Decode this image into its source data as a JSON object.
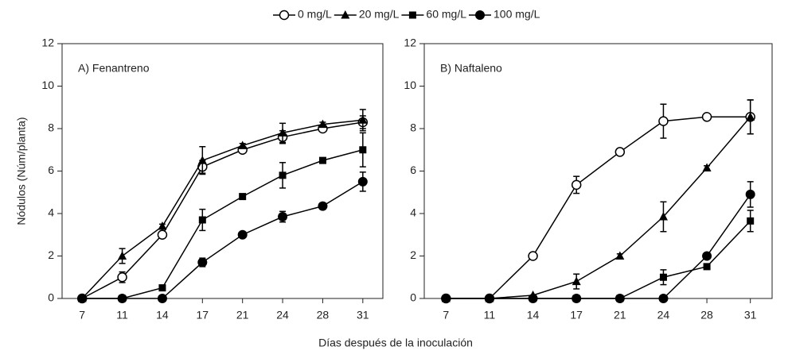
{
  "xlabel": "Días después de la inoculación",
  "chart_data": [
    {
      "type": "line",
      "title": "A) Fenantreno",
      "ylabel": "Nódulos (Núm/planta)",
      "categories": [
        "7",
        "11",
        "14",
        "17",
        "21",
        "24",
        "28",
        "31"
      ],
      "ylim": [
        0,
        12
      ],
      "yticks": [
        0,
        2,
        4,
        6,
        8,
        10,
        12
      ],
      "series": [
        {
          "name": "0 mg/L",
          "color": "#000000",
          "marker": "open-circle",
          "values": [
            0,
            1.0,
            3.0,
            6.2,
            7.0,
            7.6,
            8.0,
            8.3
          ],
          "errors": [
            0,
            0.25,
            0.1,
            0.3,
            0.1,
            0.3,
            0.1,
            0.3
          ]
        },
        {
          "name": "20 mg/L",
          "color": "#000000",
          "marker": "triangle",
          "values": [
            0,
            2.0,
            3.4,
            6.5,
            7.2,
            7.8,
            8.2,
            8.4
          ],
          "errors": [
            0,
            0.35,
            0.1,
            0.65,
            0.1,
            0.45,
            0.1,
            0.5
          ]
        },
        {
          "name": "60 mg/L",
          "color": "#000000",
          "marker": "square",
          "values": [
            0,
            0,
            0.5,
            3.7,
            4.8,
            5.8,
            6.5,
            7.0
          ],
          "errors": [
            0,
            0,
            0,
            0.5,
            0.1,
            0.6,
            0.1,
            0.8
          ]
        },
        {
          "name": "100 mg/L",
          "color": "#000000",
          "marker": "circle",
          "values": [
            0,
            0,
            0,
            1.7,
            3.0,
            3.85,
            4.35,
            5.5
          ],
          "errors": [
            0,
            0,
            0,
            0.2,
            0.1,
            0.25,
            0.15,
            0.45
          ]
        }
      ]
    },
    {
      "type": "line",
      "title": "B) Naftaleno",
      "categories": [
        "7",
        "11",
        "14",
        "17",
        "21",
        "24",
        "28",
        "31"
      ],
      "ylim": [
        0,
        12
      ],
      "yticks": [
        0,
        2,
        4,
        6,
        8,
        10,
        12
      ],
      "series": [
        {
          "color": "#000000",
          "marker": "open-circle",
          "values": [
            0,
            0,
            2.0,
            5.35,
            6.9,
            8.35,
            8.55,
            8.55
          ],
          "errors": [
            0,
            0,
            0.1,
            0.4,
            0.1,
            0.8,
            0.1,
            0.8
          ]
        },
        {
          "color": "#000000",
          "marker": "triangle",
          "values": [
            0,
            0,
            0.15,
            0.8,
            2.0,
            3.85,
            6.15,
            8.55
          ],
          "errors": [
            0,
            0,
            0,
            0.35,
            0.1,
            0.7,
            0.1,
            0.8
          ]
        },
        {
          "color": "#000000",
          "marker": "square",
          "values": [
            0,
            0,
            0,
            0,
            0,
            1.0,
            1.5,
            3.65
          ],
          "errors": [
            0,
            0,
            0,
            0,
            0,
            0.35,
            0.1,
            0.5
          ]
        },
        {
          "color": "#000000",
          "marker": "circle",
          "values": [
            0,
            0,
            0,
            0,
            0,
            0,
            2.0,
            4.9
          ],
          "errors": [
            0,
            0,
            0,
            0,
            0,
            0,
            0.1,
            0.6
          ]
        }
      ]
    }
  ]
}
